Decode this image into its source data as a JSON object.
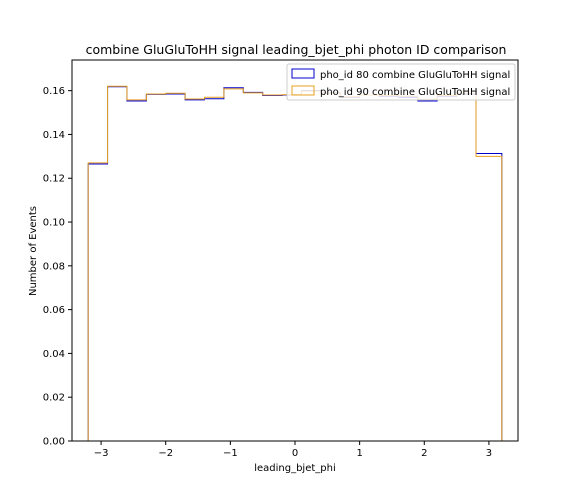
{
  "chart_data": {
    "type": "histogram-step",
    "title": "combine GluGluToHH signal leading_bjet_phi photon ID comparison",
    "xlabel": "leading_bjet_phi",
    "ylabel": "Number of Events",
    "xlim": [
      -3.45,
      3.45
    ],
    "ylim": [
      0.0,
      0.174
    ],
    "x_ticks": [
      -3,
      -2,
      -1,
      0,
      1,
      2,
      3
    ],
    "x_tick_labels": [
      "−3",
      "−2",
      "−1",
      "0",
      "1",
      "2",
      "3"
    ],
    "y_ticks": [
      0.0,
      0.02,
      0.04,
      0.06,
      0.08,
      0.1,
      0.12,
      0.14,
      0.16
    ],
    "y_tick_labels": [
      "0.00",
      "0.02",
      "0.04",
      "0.06",
      "0.08",
      "0.10",
      "0.12",
      "0.14",
      "0.16"
    ],
    "grid": false,
    "legend_position": "top-right",
    "bin_edges": [
      -3.2,
      -2.9,
      -2.6,
      -2.3,
      -2.0,
      -1.7,
      -1.4,
      -1.1,
      -0.8,
      -0.5,
      -0.2,
      0.1,
      0.4,
      0.7,
      1.0,
      1.3,
      1.6,
      1.9,
      2.2,
      2.5,
      2.8,
      3.1,
      3.2
    ],
    "series": [
      {
        "name": "pho_id 80 combine GluGluToHH signal",
        "color": "#0000cc",
        "values": [
          0.1265,
          0.1618,
          0.1553,
          0.1583,
          0.1585,
          0.1558,
          0.1563,
          0.1613,
          0.1592,
          0.1578,
          0.158,
          0.16,
          0.159,
          0.157,
          0.158,
          0.1575,
          0.157,
          0.1553,
          0.1575,
          0.1585,
          0.1313,
          0.1313
        ]
      },
      {
        "name": "pho_id 90 combine GluGluToHH signal",
        "color": "#e8a020",
        "values": [
          0.127,
          0.162,
          0.1558,
          0.1585,
          0.1588,
          0.1562,
          0.157,
          0.1608,
          0.159,
          0.158,
          0.1582,
          0.1598,
          0.1588,
          0.1572,
          0.158,
          0.1578,
          0.1575,
          0.156,
          0.1578,
          0.1588,
          0.13,
          0.13
        ]
      }
    ]
  }
}
